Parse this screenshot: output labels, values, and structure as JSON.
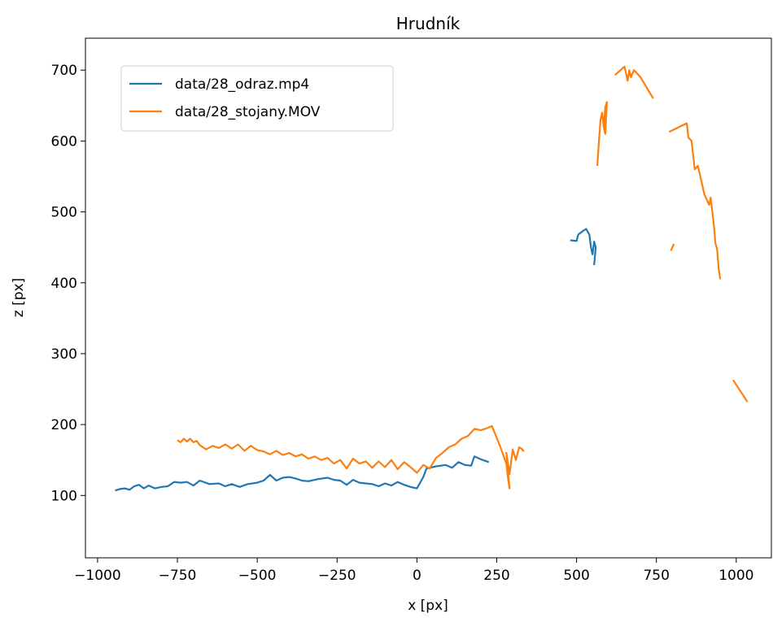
{
  "chart_data": {
    "type": "line",
    "title": "Hrudník",
    "x_label": "x [px]",
    "y_label": "z [px]",
    "xlim": [
      -1038,
      1110
    ],
    "ylim": [
      12,
      745
    ],
    "xticks": [
      {
        "value": -1000,
        "label": "−1000"
      },
      {
        "value": -750,
        "label": "−750"
      },
      {
        "value": -500,
        "label": "−500"
      },
      {
        "value": -250,
        "label": "−250"
      },
      0,
      250,
      500,
      750,
      1000
    ],
    "yticks": [
      100,
      200,
      300,
      400,
      500,
      600,
      700
    ],
    "legend": "upper-left",
    "series": [
      {
        "name": "data/28_odraz.mp4",
        "color": "#1f77b4",
        "x": [
          -945,
          -930,
          -915,
          -900,
          -885,
          -870,
          -855,
          -840,
          -820,
          -800,
          -780,
          -760,
          -740,
          -720,
          -700,
          -680,
          -650,
          -620,
          -600,
          -580,
          -555,
          -530,
          -500,
          -480,
          -460,
          -440,
          -420,
          -400,
          -380,
          -360,
          -340,
          -310,
          -280,
          -260,
          -240,
          -220,
          -200,
          -180,
          -160,
          -140,
          -120,
          -100,
          -80,
          -60,
          -40,
          -20,
          0,
          20,
          30,
          60,
          90,
          110,
          130,
          150,
          170,
          180,
          200,
          225,
          null,
          480,
          500,
          505,
          520,
          530,
          540,
          545,
          550,
          555,
          560,
          555
        ],
        "values": [
          107,
          109,
          110,
          108,
          113,
          115,
          110,
          114,
          110,
          112,
          113,
          119,
          118,
          119,
          114,
          121,
          116,
          117,
          113,
          116,
          112,
          116,
          118,
          121,
          129,
          121,
          125,
          126,
          124,
          121,
          120,
          123,
          125,
          122,
          121,
          115,
          122,
          118,
          117,
          116,
          113,
          117,
          114,
          119,
          115,
          112,
          110,
          126,
          138,
          141,
          143,
          139,
          147,
          143,
          142,
          155,
          151,
          147,
          null,
          460,
          459,
          468,
          473,
          476,
          468,
          450,
          440,
          458,
          450,
          425
        ]
      },
      {
        "name": "data/28_stojany.MOV",
        "color": "#ff7f0e",
        "x": [
          -750,
          -740,
          -730,
          -720,
          -710,
          -700,
          -690,
          -680,
          -660,
          -640,
          -620,
          -600,
          -580,
          -560,
          -540,
          -520,
          -500,
          -480,
          -460,
          -440,
          -420,
          -400,
          -380,
          -360,
          -340,
          -320,
          -300,
          -280,
          -260,
          -240,
          -220,
          -200,
          -180,
          -160,
          -140,
          -120,
          -100,
          -80,
          -60,
          -40,
          -20,
          0,
          20,
          40,
          60,
          80,
          100,
          120,
          140,
          160,
          180,
          200,
          220,
          235,
          260,
          280,
          285,
          290,
          280,
          290,
          300,
          310,
          320,
          330,
          335,
          null,
          565,
          570,
          575,
          580,
          585,
          590,
          595,
          590,
          585,
          null,
          620,
          650,
          660,
          665,
          670,
          680,
          700,
          740,
          null,
          790,
          845,
          850,
          860,
          870,
          880,
          900,
          915,
          920,
          930,
          935,
          940,
          945,
          950,
          null,
          795,
          805,
          null,
          990,
          1035
        ],
        "values": [
          178,
          175,
          180,
          176,
          180,
          175,
          177,
          171,
          165,
          170,
          167,
          172,
          166,
          172,
          163,
          170,
          164,
          162,
          158,
          163,
          157,
          160,
          155,
          158,
          152,
          155,
          150,
          153,
          145,
          150,
          138,
          152,
          145,
          148,
          139,
          148,
          140,
          150,
          137,
          147,
          140,
          132,
          143,
          138,
          153,
          160,
          168,
          172,
          180,
          184,
          194,
          192,
          195,
          198,
          170,
          145,
          125,
          110,
          160,
          130,
          165,
          150,
          168,
          165,
          162,
          null,
          565,
          600,
          630,
          640,
          620,
          648,
          655,
          610,
          620,
          null,
          693,
          705,
          685,
          700,
          690,
          700,
          690,
          660,
          null,
          613,
          625,
          605,
          600,
          560,
          565,
          525,
          510,
          520,
          480,
          455,
          448,
          420,
          405,
          null,
          445,
          455,
          null,
          263,
          232
        ]
      }
    ]
  }
}
